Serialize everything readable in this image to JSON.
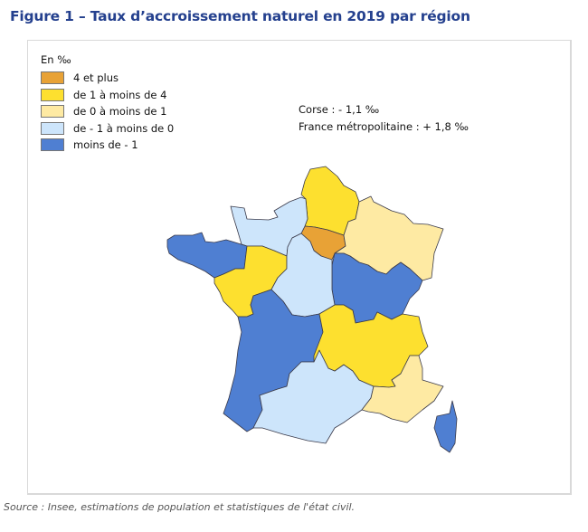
{
  "title": "Figure 1 – Taux d’accroissement naturel en 2019 par région",
  "source": "Source : Insee, estimations de population et statistiques de l'état civil.",
  "chart_data": {
    "type": "choropleth",
    "legend_title": "En ‰",
    "classes": [
      {
        "label": "4 et plus",
        "color": "#e8a236"
      },
      {
        "label": "de 1 à moins de 4",
        "color": "#fde02f"
      },
      {
        "label": "de 0 à moins de 1",
        "color": "#feeaa3"
      },
      {
        "label": "de - 1 à moins de 0",
        "color": "#cde5fb"
      },
      {
        "label": "moins de - 1",
        "color": "#4f7fd2"
      }
    ],
    "region_classes": {
      "hauts-de-france": 1,
      "ile-de-france": 0,
      "grand-est": 2,
      "bourgogne-franche-comte": 4,
      "normandie": 3,
      "bretagne": 4,
      "pays-de-la-loire": 1,
      "centre-val-de-loire": 3,
      "nouvelle-aquitaine": 4,
      "occitanie": 3,
      "auvergne-rhone-alpes": 1,
      "provence-alpes-cote-d-azur": 2,
      "corse": 4
    },
    "annotations": [
      "Corse : - 1,1 ‰",
      "France métropolitaine : + 1,8 ‰"
    ]
  }
}
